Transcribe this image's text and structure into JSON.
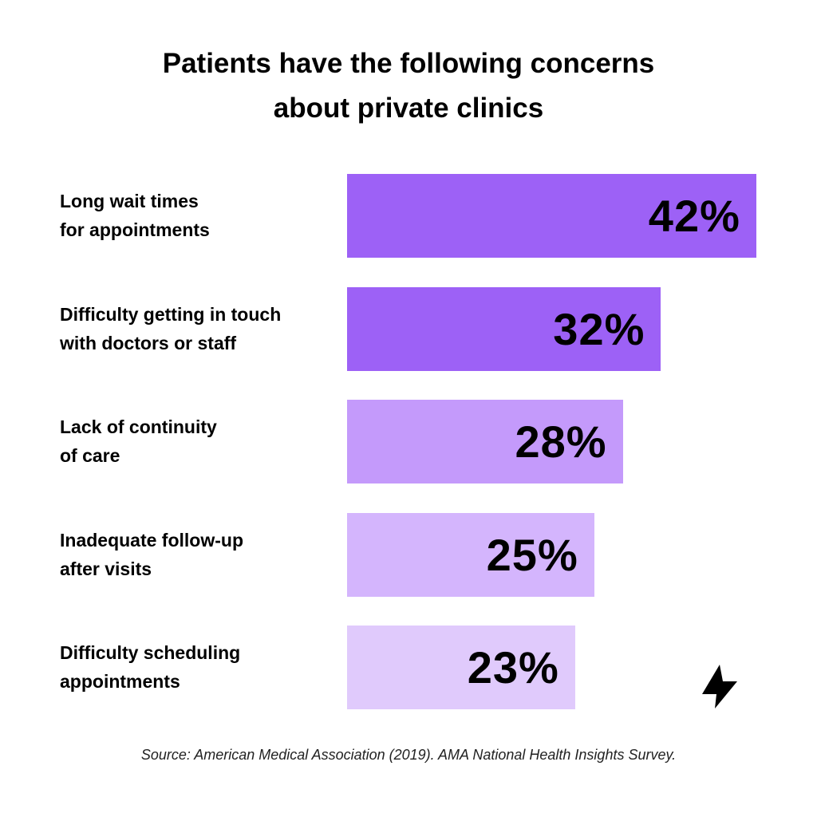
{
  "chart_data": {
    "type": "bar",
    "orientation": "horizontal",
    "title": [
      "Patients have the following concerns",
      "about private clinics"
    ],
    "categories": [
      [
        "Long wait times",
        "for appointments"
      ],
      [
        "Difficulty getting in touch",
        "with doctors or staff"
      ],
      [
        "Lack of continuity",
        "of care"
      ],
      [
        "Inadequate follow-up",
        "after visits"
      ],
      [
        "Difficulty scheduling",
        "appointments"
      ]
    ],
    "values": [
      42,
      32,
      28,
      25,
      23
    ],
    "value_labels": [
      "42%",
      "32%",
      "28%",
      "25%",
      "23%"
    ],
    "colors": [
      "#9d61f6",
      "#9d61f6",
      "#c49afb",
      "#d4b5fd",
      "#e0cafc"
    ],
    "xlabel": "",
    "ylabel": "",
    "grid": false,
    "source": "Source: American Medical Association (2019). AMA National Health Insights Survey."
  },
  "logo": {
    "icon": "lightning-bolt-icon"
  }
}
